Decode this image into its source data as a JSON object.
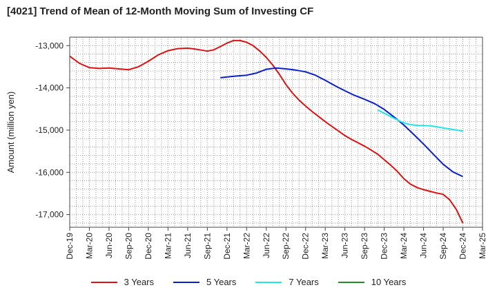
{
  "chart_data": {
    "type": "line",
    "title": "[4021]  Trend of Mean of 12-Month Moving Sum of Investing CF",
    "xlabel": "",
    "ylabel": "Amount (million yen)",
    "ylim": [
      -17300,
      -12800
    ],
    "yticks": [
      -13000,
      -14000,
      -15000,
      -16000,
      -17000
    ],
    "ytick_labels": [
      "-13,000",
      "-14,000",
      "-15,000",
      "-16,000",
      "-17,000"
    ],
    "x_categories": [
      "Dec-19",
      "Mar-20",
      "Jun-20",
      "Sep-20",
      "Dec-20",
      "Mar-21",
      "Jun-21",
      "Sep-21",
      "Dec-21",
      "Mar-22",
      "Jun-22",
      "Sep-22",
      "Dec-22",
      "Mar-23",
      "Jun-23",
      "Sep-23",
      "Dec-23",
      "Mar-24",
      "Jun-24",
      "Sep-24",
      "Dec-24",
      "Mar-25"
    ],
    "grid": true,
    "legend_position": "bottom",
    "series": [
      {
        "name": "3 Years",
        "color": "#dd1111",
        "points": [
          [
            0,
            -13250
          ],
          [
            0.5,
            -13420
          ],
          [
            1,
            -13520
          ],
          [
            1.5,
            -13540
          ],
          [
            2,
            -13530
          ],
          [
            2.5,
            -13550
          ],
          [
            3,
            -13570
          ],
          [
            3.5,
            -13500
          ],
          [
            4,
            -13370
          ],
          [
            4.5,
            -13220
          ],
          [
            5,
            -13120
          ],
          [
            5.5,
            -13070
          ],
          [
            6,
            -13060
          ],
          [
            6.5,
            -13090
          ],
          [
            7,
            -13130
          ],
          [
            7.33,
            -13100
          ],
          [
            7.67,
            -13020
          ],
          [
            8,
            -12940
          ],
          [
            8.33,
            -12880
          ],
          [
            8.67,
            -12880
          ],
          [
            9,
            -12920
          ],
          [
            9.33,
            -13000
          ],
          [
            9.67,
            -13130
          ],
          [
            10,
            -13280
          ],
          [
            10.33,
            -13460
          ],
          [
            10.67,
            -13680
          ],
          [
            11,
            -13920
          ],
          [
            11.33,
            -14120
          ],
          [
            11.67,
            -14290
          ],
          [
            12,
            -14430
          ],
          [
            12.33,
            -14560
          ],
          [
            12.67,
            -14680
          ],
          [
            13,
            -14800
          ],
          [
            13.33,
            -14910
          ],
          [
            13.67,
            -15020
          ],
          [
            14,
            -15130
          ],
          [
            14.33,
            -15220
          ],
          [
            14.67,
            -15300
          ],
          [
            15,
            -15380
          ],
          [
            15.33,
            -15470
          ],
          [
            15.67,
            -15570
          ],
          [
            16,
            -15700
          ],
          [
            16.33,
            -15830
          ],
          [
            16.67,
            -15980
          ],
          [
            17,
            -16150
          ],
          [
            17.33,
            -16280
          ],
          [
            17.67,
            -16360
          ],
          [
            18,
            -16410
          ],
          [
            18.33,
            -16450
          ],
          [
            18.67,
            -16490
          ],
          [
            19,
            -16520
          ],
          [
            19.33,
            -16650
          ],
          [
            19.67,
            -16880
          ],
          [
            20,
            -17200
          ]
        ]
      },
      {
        "name": "5 Years",
        "color": "#0a1ec8",
        "points": [
          [
            7.67,
            -13760
          ],
          [
            8,
            -13740
          ],
          [
            8.5,
            -13720
          ],
          [
            9,
            -13700
          ],
          [
            9.5,
            -13650
          ],
          [
            10,
            -13560
          ],
          [
            10.5,
            -13530
          ],
          [
            11,
            -13550
          ],
          [
            11.5,
            -13580
          ],
          [
            12,
            -13620
          ],
          [
            12.5,
            -13700
          ],
          [
            13,
            -13820
          ],
          [
            13.5,
            -13950
          ],
          [
            14,
            -14070
          ],
          [
            14.5,
            -14180
          ],
          [
            15,
            -14270
          ],
          [
            15.5,
            -14370
          ],
          [
            16,
            -14510
          ],
          [
            16.5,
            -14690
          ],
          [
            17,
            -14880
          ],
          [
            17.5,
            -15100
          ],
          [
            18,
            -15330
          ],
          [
            18.5,
            -15570
          ],
          [
            19,
            -15810
          ],
          [
            19.5,
            -15990
          ],
          [
            20,
            -16100
          ]
        ]
      },
      {
        "name": "7 Years",
        "color": "#22e6e6",
        "points": [
          [
            15.67,
            -14520
          ],
          [
            16,
            -14600
          ],
          [
            16.33,
            -14680
          ],
          [
            16.67,
            -14760
          ],
          [
            17,
            -14830
          ],
          [
            17.33,
            -14870
          ],
          [
            17.67,
            -14890
          ],
          [
            18,
            -14890
          ],
          [
            18.33,
            -14900
          ],
          [
            18.67,
            -14920
          ],
          [
            19,
            -14950
          ],
          [
            19.33,
            -14970
          ],
          [
            19.67,
            -15000
          ],
          [
            20,
            -15020
          ]
        ]
      },
      {
        "name": "10 Years",
        "color": "#228b22",
        "points": []
      }
    ]
  }
}
